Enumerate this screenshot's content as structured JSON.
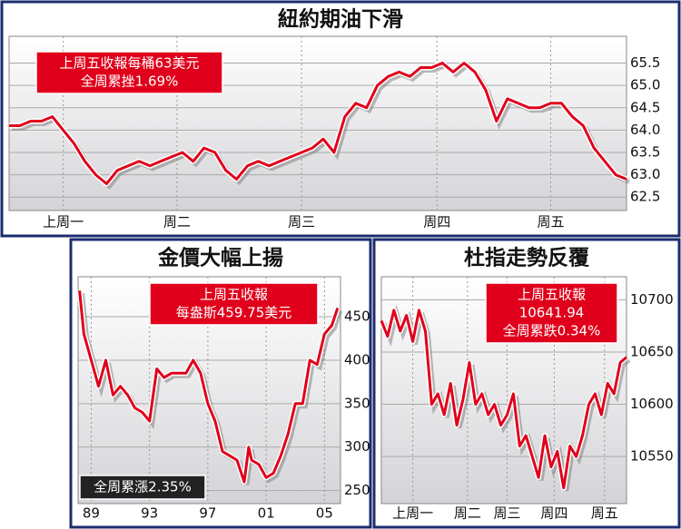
{
  "chart_data": [
    {
      "type": "line",
      "title": "紐約期油下滑",
      "annotations": [
        [
          "上周五收報每桶63美元",
          "全周累挫1.69%"
        ]
      ],
      "values": [
        64.1,
        64.1,
        64.2,
        64.2,
        64.3,
        64.0,
        63.7,
        63.3,
        63.0,
        62.8,
        63.1,
        63.2,
        63.3,
        63.2,
        63.3,
        63.4,
        63.5,
        63.3,
        63.6,
        63.5,
        63.1,
        62.9,
        63.2,
        63.3,
        63.2,
        63.3,
        63.4,
        63.5,
        63.6,
        63.8,
        63.5,
        64.3,
        64.6,
        64.5,
        65.0,
        65.2,
        65.3,
        65.2,
        65.4,
        65.4,
        65.5,
        65.3,
        65.5,
        65.3,
        64.9,
        64.2,
        64.7,
        64.6,
        64.5,
        64.5,
        64.6,
        64.6,
        64.3,
        64.1,
        63.6,
        63.3,
        63.0,
        62.9
      ],
      "color": "#e0001b",
      "xlim": [
        0,
        57
      ],
      "xticks": [
        {
          "value": 5,
          "label": "上周一"
        },
        {
          "value": 15.5,
          "label": "周二"
        },
        {
          "value": 27,
          "label": "周三"
        },
        {
          "value": 39.5,
          "label": "周四"
        },
        {
          "value": 50,
          "label": "周五"
        }
      ],
      "ylim": [
        62.2,
        66.1
      ],
      "yticks": [
        62.5,
        {
          "value": 63,
          "label": "63.0"
        },
        63.5,
        {
          "value": 64,
          "label": "64.0"
        },
        64.5,
        {
          "value": 65,
          "label": "65.0"
        },
        65.5
      ],
      "grid": true
    },
    {
      "type": "line",
      "title": "金價大幅上揚",
      "annotations": [
        [
          "上周五收報",
          "每盎斯459.75美元"
        ],
        [
          "全周累漲2.35%"
        ]
      ],
      "x": [
        1988.2,
        1988.5,
        1989,
        1989.5,
        1990,
        1990.5,
        1991,
        1991.5,
        1992,
        1992.5,
        1993,
        1993.5,
        1994,
        1994.5,
        1995,
        1995.5,
        1996,
        1996.5,
        1997,
        1997.5,
        1998,
        1998.5,
        1999,
        1999.5,
        1999.8,
        2000,
        2000.5,
        2001,
        2001.5,
        2002,
        2002.5,
        2003,
        2003.5,
        2004,
        2004.5,
        2005,
        2005.5,
        2005.9
      ],
      "values": [
        480,
        430,
        400,
        370,
        400,
        360,
        370,
        360,
        345,
        340,
        330,
        390,
        380,
        385,
        385,
        385,
        400,
        385,
        350,
        330,
        295,
        290,
        285,
        260,
        300,
        285,
        280,
        265,
        270,
        290,
        315,
        350,
        350,
        400,
        395,
        430,
        440,
        460
      ],
      "color": "#e0001b",
      "xlim": [
        1988.1,
        2006.1
      ],
      "xticks": [
        {
          "value": 1989,
          "label": "89"
        },
        {
          "value": 1993,
          "label": "93"
        },
        {
          "value": 1997,
          "label": "97"
        },
        {
          "value": 2001,
          "label": "01"
        },
        {
          "value": 2005,
          "label": "05"
        }
      ],
      "ylim": [
        235,
        496
      ],
      "yticks": [
        250,
        300,
        350,
        400,
        450
      ],
      "grid": true
    },
    {
      "type": "line",
      "title": "杜指走勢反覆",
      "annotations": [
        [
          "上周五收報",
          "10641.94",
          "全周累跌0.34%"
        ]
      ],
      "values": [
        10680,
        10665,
        10690,
        10670,
        10685,
        10660,
        10690,
        10670,
        10600,
        10610,
        10590,
        10620,
        10580,
        10605,
        10640,
        10600,
        10610,
        10590,
        10600,
        10580,
        10590,
        10610,
        10560,
        10570,
        10550,
        10530,
        10570,
        10540,
        10555,
        10520,
        10560,
        10550,
        10570,
        10600,
        10610,
        10590,
        10620,
        10610,
        10640,
        10645
      ],
      "color": "#e0001b",
      "xlim": [
        0,
        39
      ],
      "xticks": [
        {
          "value": 5,
          "label": "上周一"
        },
        {
          "value": 13.7,
          "label": "周二"
        },
        {
          "value": 20,
          "label": "周三"
        },
        {
          "value": 27.5,
          "label": "周四"
        },
        {
          "value": 35.5,
          "label": "周五"
        }
      ],
      "ylim": [
        10505,
        10722
      ],
      "yticks": [
        10550,
        10600,
        10650,
        10700
      ],
      "grid": true
    }
  ]
}
